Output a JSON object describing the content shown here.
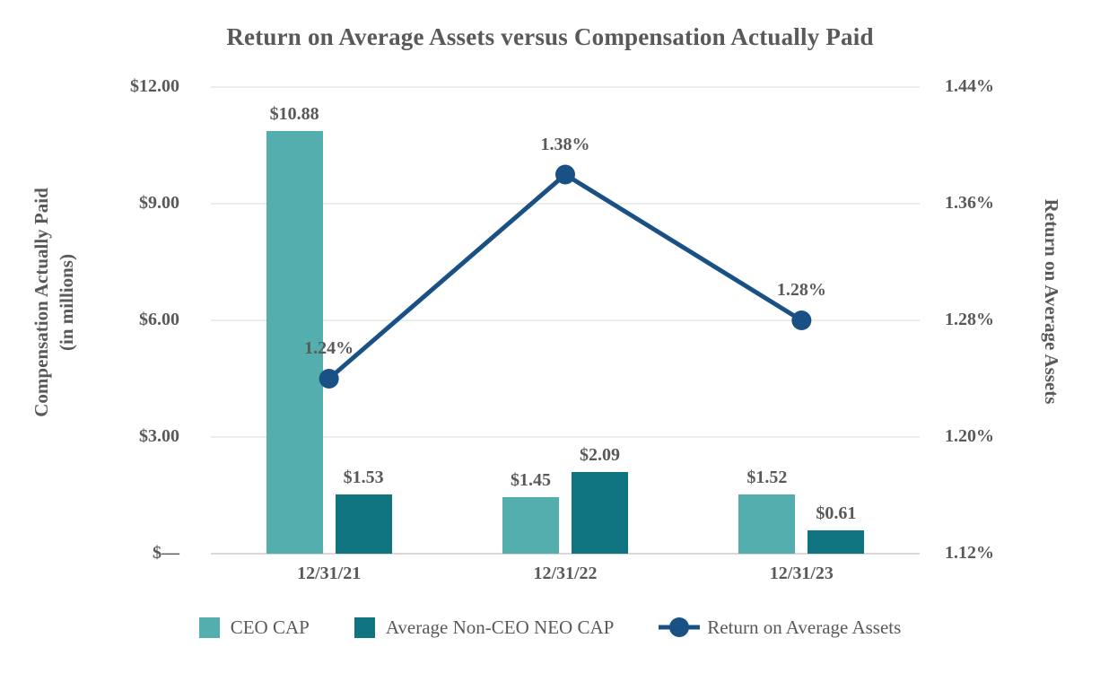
{
  "title": "Return on Average Assets versus Compensation Actually Paid",
  "colors": {
    "ceo_cap": "#54AEAD",
    "neo_cap": "#0F7380",
    "roaa_line": "#1A5185",
    "text": "#595959",
    "gridline": "#ECECEC",
    "axis_line": "#D9D9D9"
  },
  "chart_data": {
    "type": "bar+line combo",
    "title": "Return on Average Assets versus Compensation Actually Paid",
    "categories": [
      "12/31/21",
      "12/31/22",
      "12/31/23"
    ],
    "series": [
      {
        "name": "CEO CAP",
        "kind": "bar",
        "axis": "left",
        "color_key": "ceo_cap",
        "values": [
          10.88,
          1.45,
          1.52
        ],
        "labels": [
          "$10.88",
          "$1.45",
          "$1.52"
        ]
      },
      {
        "name": "Average Non-CEO NEO CAP",
        "kind": "bar",
        "axis": "left",
        "color_key": "neo_cap",
        "values": [
          1.53,
          2.09,
          0.61
        ],
        "labels": [
          "$1.53",
          "$2.09",
          "$0.61"
        ]
      },
      {
        "name": "Return on Average Assets",
        "kind": "line",
        "axis": "right",
        "color_key": "roaa_line",
        "values": [
          1.24,
          1.38,
          1.28
        ],
        "labels": [
          "1.24%",
          "1.38%",
          "1.28%"
        ]
      }
    ],
    "left_axis": {
      "title_line1": "Compensation Actually Paid",
      "title_line2": "(in millions)",
      "min": 0,
      "max": 12,
      "tick_labels": [
        "$12.00",
        "$9.00",
        "$6.00",
        "$3.00",
        "$—"
      ],
      "tick_values": [
        12,
        9,
        6,
        3,
        0
      ]
    },
    "right_axis": {
      "title": "Return on Average Assets",
      "min": 1.12,
      "max": 1.44,
      "tick_labels": [
        "1.44%",
        "1.36%",
        "1.28%",
        "1.20%",
        "1.12%"
      ],
      "tick_values": [
        1.44,
        1.36,
        1.28,
        1.2,
        1.12
      ]
    },
    "grid": true,
    "legend_position": "bottom",
    "legend": [
      {
        "label": "CEO CAP",
        "swatch": "square",
        "color_key": "ceo_cap"
      },
      {
        "label": "Average Non-CEO NEO CAP",
        "swatch": "square",
        "color_key": "neo_cap"
      },
      {
        "label": "Return on Average Assets",
        "swatch": "line-marker",
        "color_key": "roaa_line"
      }
    ]
  }
}
